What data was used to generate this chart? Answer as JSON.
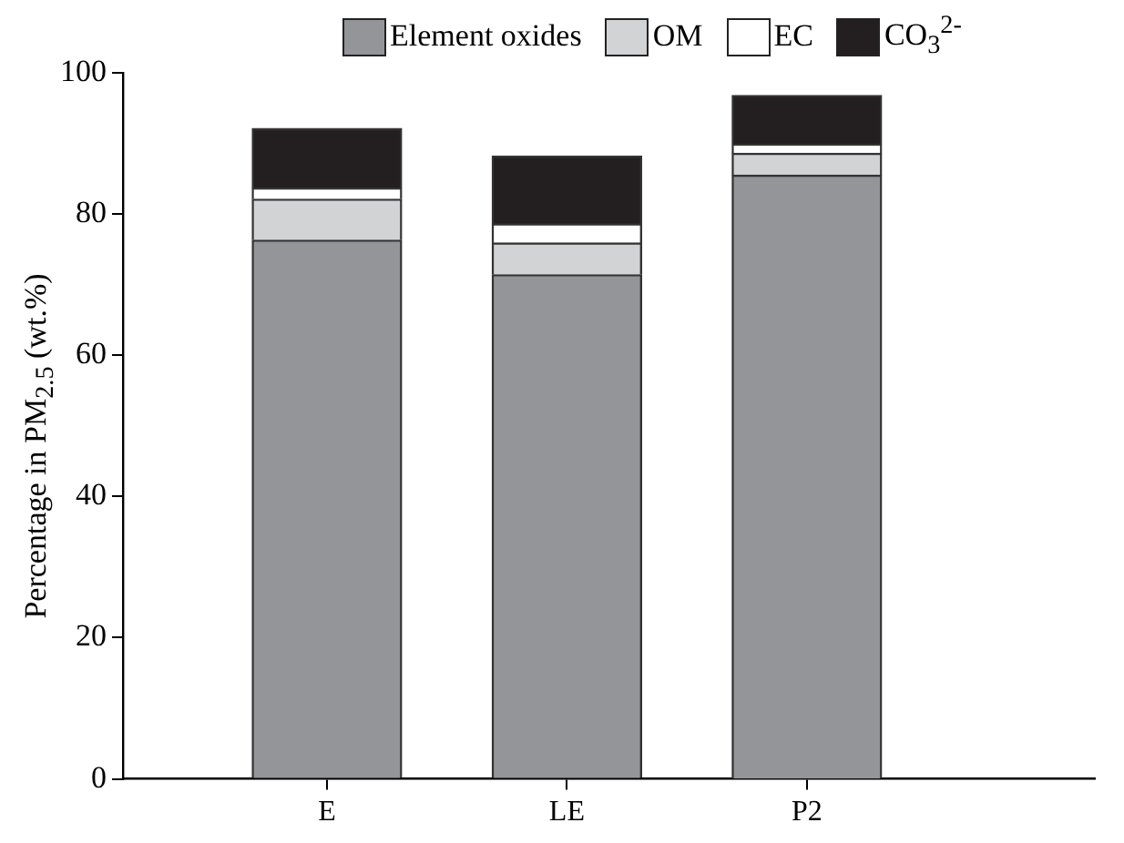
{
  "chart_data": {
    "type": "bar",
    "stacked": true,
    "categories": [
      "E",
      "LE",
      "P2"
    ],
    "ylabel": "Percentage in PM$_{2.5}$ (wt.%)",
    "ylim": [
      0,
      100
    ],
    "yticks": [
      0,
      20,
      40,
      60,
      80,
      100
    ],
    "grid": false,
    "legend": "top",
    "series": [
      {
        "name": "Element oxides",
        "color": "#939598",
        "values": [
          76.3,
          71.4,
          85.5
        ]
      },
      {
        "name": "OM",
        "color": "#d1d3d4",
        "values": [
          5.8,
          4.5,
          3.1
        ]
      },
      {
        "name": "EC",
        "color": "#ffffff",
        "values": [
          1.6,
          2.7,
          1.3
        ]
      },
      {
        "name": "CO$_{3}$$^{2-}$",
        "color": "#231f20",
        "values": [
          8.4,
          9.6,
          6.9
        ]
      }
    ]
  }
}
